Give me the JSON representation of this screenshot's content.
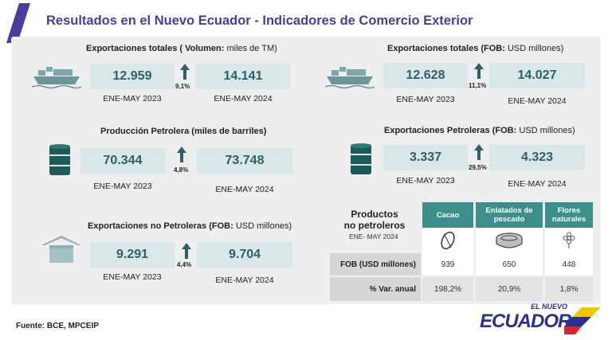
{
  "header": {
    "title": "Resultados en el Nuevo Ecuador - Indicadores de Comercio Exterior"
  },
  "colors": {
    "title": "#4a3c9c",
    "teal": "#3d8f8c",
    "value_box": "#d9e7e8",
    "value_text": "#2f5f66"
  },
  "blocks": [
    {
      "title_bold": "Exportaciones totales (",
      "title_bold2": " Volumen:",
      "title_rest": " miles de TM)",
      "icon": "cargo-ship-icon",
      "v2023": "12.959",
      "v2024": "14.141",
      "p2023": "ENE-MAY 2023",
      "p2024": "ENE-MAY 2024",
      "pct": "9,1%"
    },
    {
      "title_bold": "Exportaciones totales (FOB:",
      "title_rest": " USD millones)",
      "icon": "cargo-ship-icon",
      "v2023": "12.628",
      "v2024": "14.027",
      "p2023": "ENE-MAY 2023",
      "p2024": "ENE-MAY 2024",
      "pct": "11,1%"
    },
    {
      "title_bold": "Producción Petrolera (miles de barriles)",
      "title_rest": "",
      "icon": "oil-barrel-icon",
      "v2023": "70.344",
      "v2024": "73.748",
      "p2023": "ENE-MAY 2023",
      "p2024": "ENE-MAY 2024",
      "pct": "4,8%"
    },
    {
      "title_bold": "Exportaciones Petroleras (FOB:",
      "title_rest": " USD millones)",
      "icon": "oil-barrel-icon",
      "v2023": "3.337",
      "v2024": "4.323",
      "p2023": "ENE-MAY 2023",
      "p2024": "ENE-MAY 2024",
      "pct": "29,5%"
    },
    {
      "title_bold": "Exportaciones no Petroleras (FOB:",
      "title_rest": " USD millones)",
      "icon": "warehouse-box-icon",
      "v2023": "9.291",
      "v2024": "9.704",
      "p2023": "ENE-MAY 2023",
      "p2024": "ENE-MAY 2024",
      "pct": "4,4%"
    }
  ],
  "products": {
    "title_line1": "Productos",
    "title_line2": "no petroleros",
    "subtitle": "ENE- MAY 2024",
    "columns": [
      {
        "label": "Cacao",
        "icon": "cacao-pod-icon"
      },
      {
        "label": "Enlatados de pescado",
        "icon": "fish-can-icon"
      },
      {
        "label": "Flores naturales",
        "icon": "flower-icon"
      }
    ],
    "rows": [
      {
        "label": "FOB (USD millones)",
        "values": [
          "939",
          "650",
          "448"
        ]
      },
      {
        "label": "% Var. anual",
        "values": [
          "198,2%",
          "20,9%",
          "1,8%"
        ]
      }
    ]
  },
  "footer": {
    "source": "Fuente: BCE, MPCEIP"
  },
  "logo": {
    "top": "EL NUEVO",
    "main": "ECUADOR"
  }
}
